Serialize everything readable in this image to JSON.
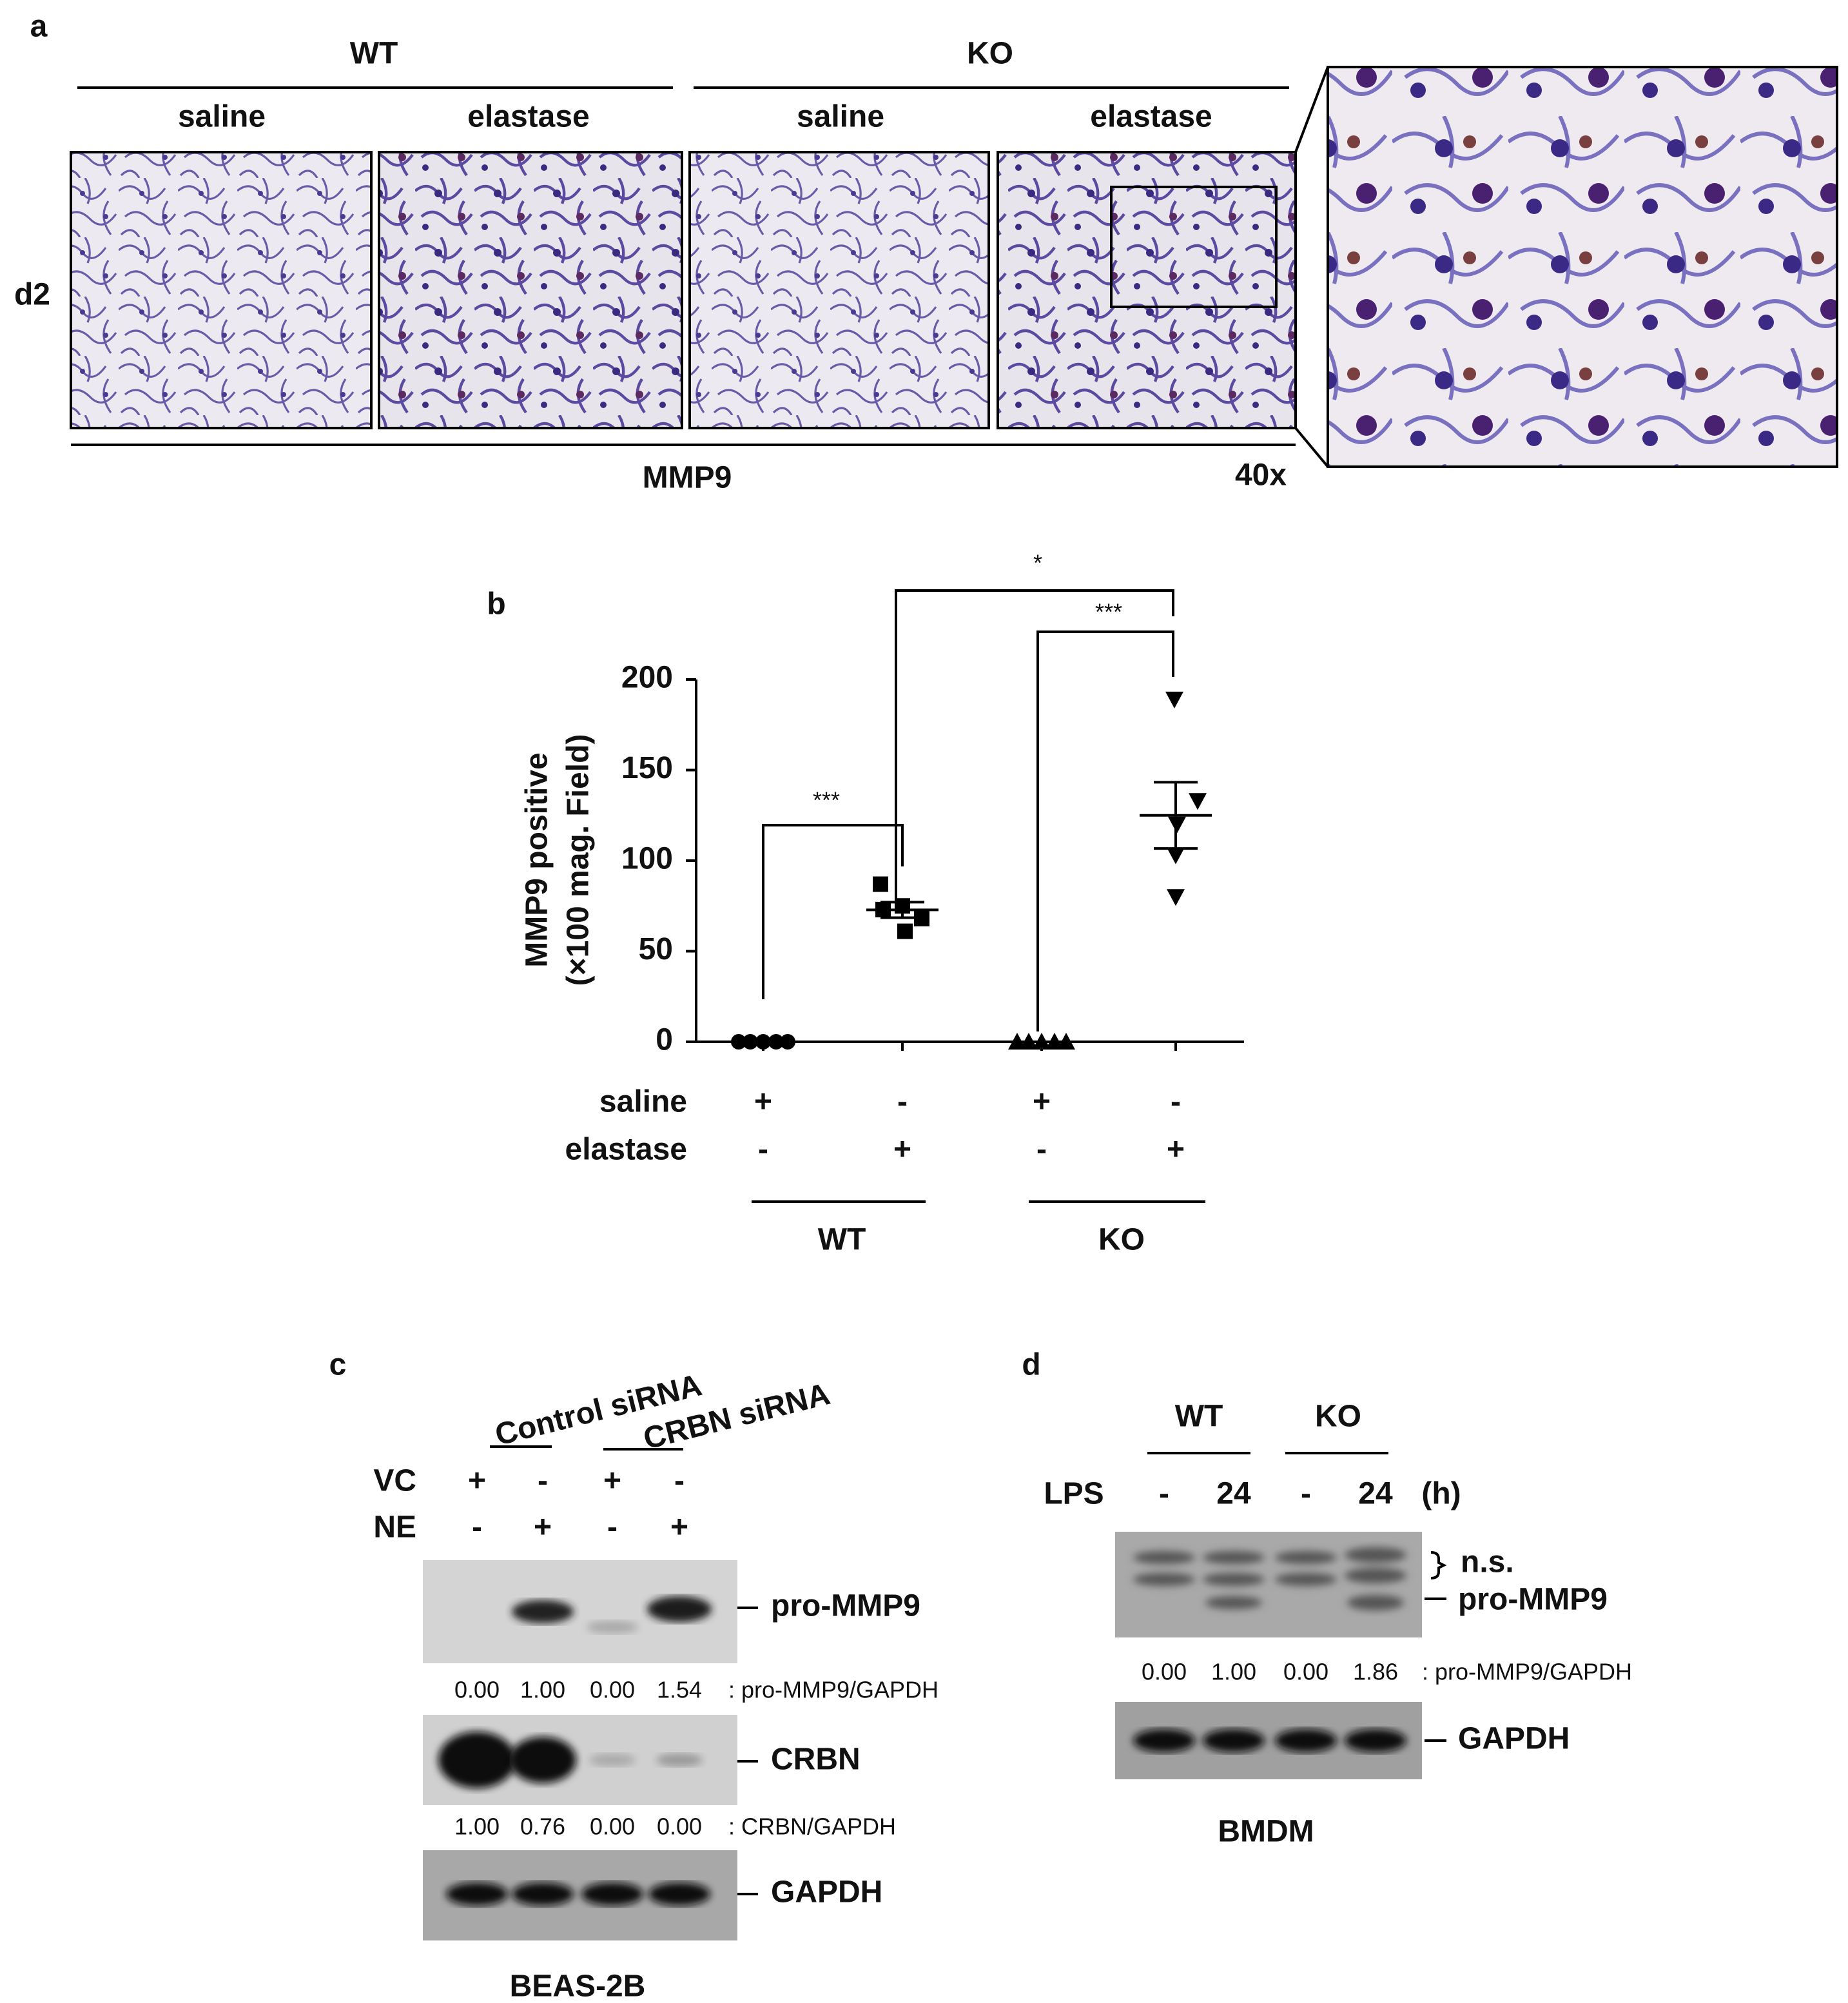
{
  "panel_a": {
    "label": "a",
    "genotypes": [
      "WT",
      "KO"
    ],
    "treatments": [
      "saline",
      "elastase",
      "saline",
      "elastase"
    ],
    "row_label": "d2",
    "stain": "MMP9",
    "magnification": "40x"
  },
  "chart_data": {
    "type": "scatter",
    "label": "b",
    "ylabel": [
      "MMP9 positive",
      "(×100 mag. Field)"
    ],
    "ylim": [
      0,
      200
    ],
    "yticks": [
      0,
      50,
      100,
      150,
      200
    ],
    "color": "#000000",
    "row_labels": [
      "saline",
      "elastase"
    ],
    "groups": [
      {
        "marker": "circle",
        "signs": [
          "+",
          "-"
        ],
        "values": [
          0,
          0,
          0,
          0,
          0
        ]
      },
      {
        "marker": "square",
        "signs": [
          "-",
          "+"
        ],
        "values": [
          87,
          75,
          68,
          73,
          61
        ],
        "mean": 72.8,
        "sem": 4.3
      },
      {
        "marker": "triangle",
        "signs": [
          "+",
          "-"
        ],
        "values": [
          0,
          0,
          0,
          0,
          0
        ]
      },
      {
        "marker": "triangle-down",
        "signs": [
          "-",
          "+"
        ],
        "values": [
          189,
          133,
          120,
          103,
          80
        ],
        "mean": 125,
        "sem": 18.3
      }
    ],
    "genotypes": [
      "WT",
      "KO"
    ],
    "significance": [
      "***",
      "***",
      "*"
    ]
  },
  "panel_c": {
    "label": "c",
    "groups": [
      "Control siRNA",
      "CRBN siRNA"
    ],
    "rows": [
      {
        "name": "VC",
        "signs": [
          "+",
          "-",
          "+",
          "-"
        ]
      },
      {
        "name": "NE",
        "signs": [
          "-",
          "+",
          "-",
          "+"
        ]
      }
    ],
    "bands": [
      "pro-MMP9",
      "CRBN",
      "GAPDH"
    ],
    "ratios": [
      {
        "values": [
          "0.00",
          "1.00",
          "0.00",
          "1.54"
        ],
        "label": ": pro-MMP9/GAPDH"
      },
      {
        "values": [
          "1.00",
          "0.76",
          "0.00",
          "0.00"
        ],
        "label": ": CRBN/GAPDH"
      }
    ],
    "cell_line": "BEAS-2B"
  },
  "panel_d": {
    "label": "d",
    "genotypes": [
      "WT",
      "KO"
    ],
    "row": {
      "name": "LPS",
      "values": [
        "-",
        "24",
        "-",
        "24"
      ],
      "unit": "(h)"
    },
    "bands": [
      "n.s.",
      "pro-MMP9",
      "GAPDH"
    ],
    "ratios": {
      "values": [
        "0.00",
        "1.00",
        "0.00",
        "1.86"
      ],
      "label": ": pro-MMP9/GAPDH"
    },
    "cell_type": "BMDM"
  }
}
